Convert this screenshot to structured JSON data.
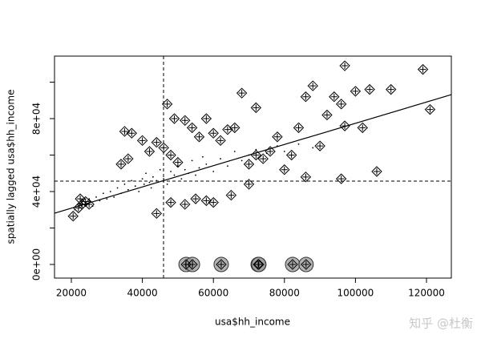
{
  "chart_data": {
    "type": "scatter",
    "x_label": "usa$hh_income",
    "y_label": "spatially lagged usa$hh_income",
    "watermark": "知乎 @杜衡",
    "xlim": [
      15260,
      127000
    ],
    "ylim": [
      -7470,
      114300
    ],
    "xticks": [
      20000,
      40000,
      60000,
      80000,
      100000,
      120000
    ],
    "yticks": [
      {
        "value": 0,
        "label": "0e+00"
      },
      {
        "value": 20000,
        "label": null
      },
      {
        "value": 40000,
        "label": "4e+04"
      },
      {
        "value": 60000,
        "label": null
      },
      {
        "value": 80000,
        "label": "8e+04"
      },
      {
        "value": 100000,
        "label": null
      }
    ],
    "vline": 45960,
    "hline": 45700,
    "fit_line": {
      "intercept": 19250,
      "slope": 0.582
    },
    "series": [
      {
        "marker": "dot",
        "color": "#000000",
        "x": [
          21000,
          23000,
          25000,
          26000,
          27000,
          28000,
          29000,
          30000,
          31000,
          32000,
          33000,
          34000,
          35000,
          36000,
          37000,
          38000,
          39000,
          40000,
          40500,
          41000,
          42000,
          42500,
          43000,
          44000,
          45000,
          46000,
          47000,
          48000,
          49000,
          50000,
          51000,
          52000,
          53000,
          54000,
          55000,
          56000,
          57000,
          58000,
          60000,
          62000,
          64000,
          66000,
          68000,
          70000,
          72000,
          75000,
          78000,
          80000,
          84000,
          88000
        ],
        "y": [
          30000,
          33000,
          36000,
          32000,
          37000,
          35000,
          39000,
          36000,
          40000,
          37000,
          42000,
          39000,
          44000,
          41000,
          46000,
          43000,
          40000,
          47000,
          44000,
          50000,
          45000,
          42000,
          48000,
          46000,
          52000,
          47000,
          44000,
          51000,
          49000,
          54000,
          47000,
          52000,
          50000,
          57000,
          49000,
          53000,
          59000,
          55000,
          51000,
          58000,
          54000,
          62000,
          57000,
          60000,
          63000,
          61000,
          65000,
          62000,
          66000,
          64000
        ]
      },
      {
        "marker": "diamond",
        "color": "#000000",
        "x": [
          22000,
          23000,
          24000,
          25000,
          20500,
          22500,
          35000,
          37000,
          34000,
          36000,
          40000,
          42000,
          44000,
          46000,
          47000,
          48000,
          49000,
          50000,
          52000,
          54000,
          56000,
          58000,
          60000,
          62000,
          64000,
          66000,
          68000,
          70000,
          72000,
          72000,
          74000,
          76000,
          78000,
          80000,
          82000,
          84000,
          86000,
          88000,
          90000,
          92000,
          94000,
          96000,
          97000,
          100000,
          102000,
          104000,
          106000,
          110000,
          119000,
          121000,
          44000,
          48000,
          52000,
          55000,
          58000,
          60000,
          65000,
          70000,
          86000,
          96000,
          97000,
          52300,
          54100,
          62200,
          72600,
          72800,
          82300,
          86100
        ],
        "y": [
          31000,
          33000,
          34500,
          33000,
          26500,
          36000,
          73000,
          72000,
          55000,
          58000,
          68000,
          62000,
          67000,
          64000,
          88000,
          60000,
          80000,
          56000,
          79000,
          75000,
          70000,
          80000,
          72000,
          68000,
          74000,
          75000,
          94000,
          55000,
          60000,
          86000,
          58000,
          62000,
          70000,
          52000,
          60000,
          75000,
          92000,
          98000,
          65000,
          82000,
          92000,
          88000,
          109000,
          95000,
          75000,
          96000,
          51000,
          96000,
          107000,
          85000,
          28000,
          34000,
          33000,
          36000,
          35000,
          34000,
          38000,
          44000,
          48000,
          47000,
          76000,
          0,
          0,
          0,
          0,
          0,
          0,
          0
        ]
      },
      {
        "marker": "circle",
        "color": "#999999",
        "x": [
          52300,
          54100,
          62200,
          72600,
          72800,
          82300,
          86100
        ],
        "y": [
          0,
          0,
          0,
          0,
          0,
          0,
          0
        ]
      }
    ]
  }
}
